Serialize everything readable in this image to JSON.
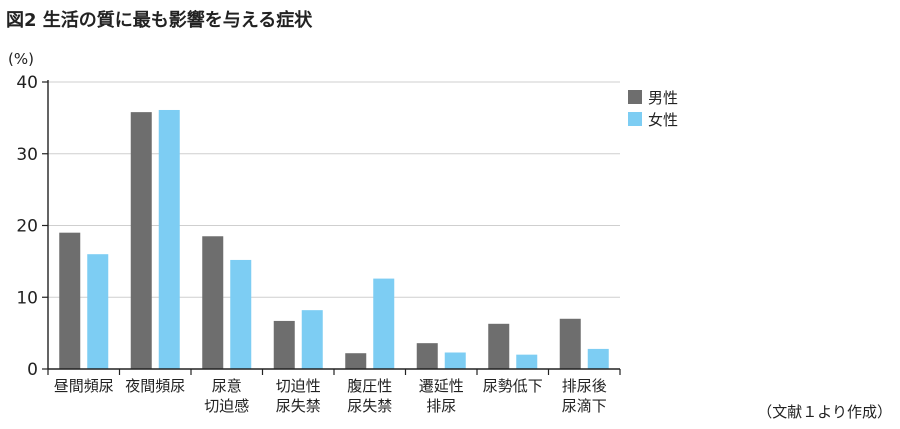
{
  "chart_data": {
    "type": "bar",
    "title": "図2 生活の質に最も影響を与える症状",
    "ylabel": "(%)",
    "ylim": [
      0,
      40
    ],
    "yticks": [
      0,
      10,
      20,
      30,
      40
    ],
    "grid": true,
    "legend_position": "top-right",
    "categories": [
      [
        "昼間頻尿"
      ],
      [
        "夜間頻尿"
      ],
      [
        "尿意",
        "切迫感"
      ],
      [
        "切迫性",
        "尿失禁"
      ],
      [
        "腹圧性",
        "尿失禁"
      ],
      [
        "遷延性",
        "排尿"
      ],
      [
        "尿勢低下"
      ],
      [
        "排尿後",
        "尿滴下"
      ]
    ],
    "series": [
      {
        "name": "男性",
        "color": "#6e6e6e",
        "values": [
          19.0,
          35.8,
          18.5,
          6.7,
          2.2,
          3.6,
          6.3,
          7.0
        ]
      },
      {
        "name": "女性",
        "color": "#7dcdf3",
        "values": [
          16.0,
          36.1,
          15.2,
          8.2,
          12.6,
          2.3,
          2.0,
          2.8
        ]
      }
    ],
    "source_note": "（文献１より作成）"
  }
}
